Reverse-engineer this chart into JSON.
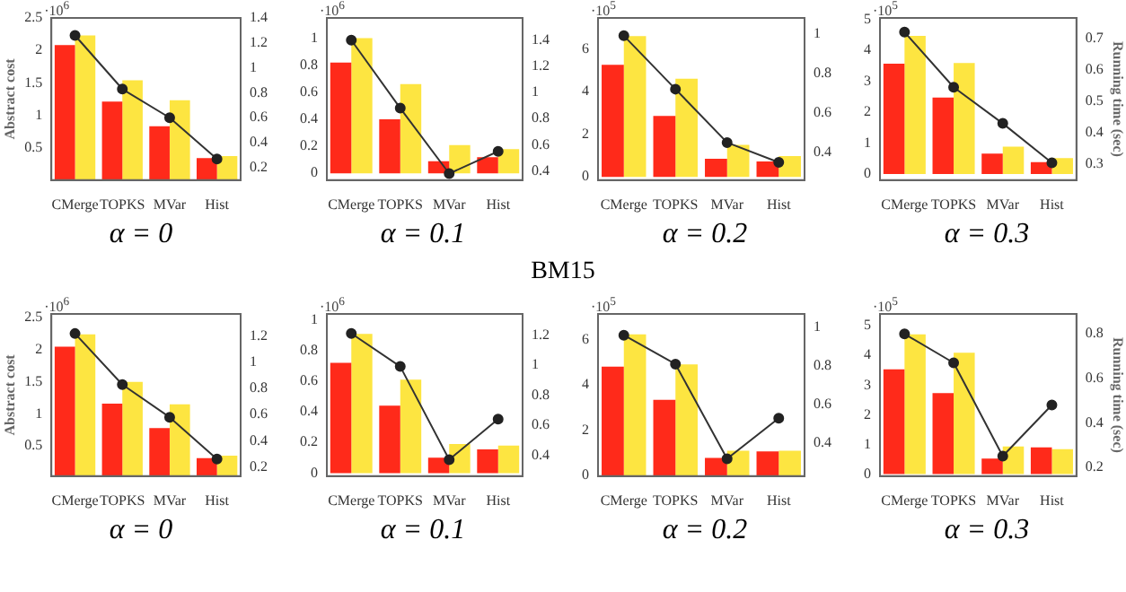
{
  "chart_data": [
    {
      "type": "bar",
      "title": "α = 0",
      "ylabel": "Abstract cost",
      "categories": [
        "CMerge",
        "TOPKS",
        "MVar",
        "Hist"
      ],
      "ylim": [
        0,
        2.5
      ],
      "yticks": [
        0.5,
        1,
        1.5,
        2,
        2.5
      ],
      "y2lim": [
        0.1,
        1.4
      ],
      "y2ticks": [
        0.2,
        0.4,
        0.6,
        0.8,
        1,
        1.2,
        1.4
      ],
      "grid": false,
      "legend": false,
      "marker": "circle",
      "annotations": [
        "·10$^{6}$"
      ],
      "series": [
        {
          "color": "#ff2a1a",
          "values": [
            2.08,
            1.21,
            0.83,
            0.34
          ]
        },
        {
          "color": "#fde541",
          "values": [
            2.23,
            1.54,
            1.23,
            0.37
          ]
        },
        {
          "type": "line",
          "axis": "y2",
          "color": "#333333",
          "values": [
            1.26,
            0.83,
            0.6,
            0.27
          ]
        }
      ]
    },
    {
      "type": "bar",
      "title": "α = 0.1",
      "categories": [
        "CMerge",
        "TOPKS",
        "MVar",
        "Hist"
      ],
      "ylim": [
        -0.05,
        1.15
      ],
      "yticks": [
        0,
        0.2,
        0.4,
        0.6,
        0.8,
        1
      ],
      "y2lim": [
        0.33,
        1.57
      ],
      "y2ticks": [
        0.4,
        0.6,
        0.8,
        1,
        1.2,
        1.4
      ],
      "grid": false,
      "legend": false,
      "marker": "circle",
      "annotations": [
        "·10$^{6}$",
        "BM15"
      ],
      "series": [
        {
          "color": "#ff2a1a",
          "values": [
            0.82,
            0.4,
            0.09,
            0.12
          ]
        },
        {
          "color": "#fde541",
          "values": [
            1.0,
            0.66,
            0.21,
            0.18
          ]
        },
        {
          "type": "line",
          "axis": "y2",
          "color": "#333333",
          "values": [
            1.4,
            0.88,
            0.38,
            0.55
          ]
        }
      ]
    },
    {
      "type": "bar",
      "title": "α = 0.2",
      "categories": [
        "CMerge",
        "TOPKS",
        "MVar",
        "Hist"
      ],
      "ylim": [
        -0.15,
        7.45
      ],
      "yticks": [
        0,
        2,
        4,
        6
      ],
      "y2lim": [
        0.26,
        1.08
      ],
      "y2ticks": [
        0.4,
        0.6,
        0.8,
        1
      ],
      "grid": false,
      "legend": false,
      "marker": "circle",
      "annotations": [
        "·10$^{5}$"
      ],
      "series": [
        {
          "color": "#ff2a1a",
          "values": [
            5.25,
            2.86,
            0.85,
            0.72
          ]
        },
        {
          "color": "#fde541",
          "values": [
            6.6,
            4.6,
            1.5,
            0.98
          ]
        },
        {
          "type": "line",
          "axis": "y2",
          "color": "#333333",
          "values": [
            0.99,
            0.72,
            0.45,
            0.35
          ]
        }
      ]
    },
    {
      "type": "bar",
      "title": "α = 0.3",
      "y2label": "Running time (sec)",
      "categories": [
        "CMerge",
        "TOPKS",
        "MVar",
        "Hist"
      ],
      "ylim": [
        -0.2,
        5.05
      ],
      "yticks": [
        0,
        1,
        2,
        3,
        4,
        5
      ],
      "y2lim": [
        0.25,
        0.765
      ],
      "y2ticks": [
        0.3,
        0.4,
        0.5,
        0.6,
        0.7
      ],
      "grid": false,
      "legend": false,
      "marker": "circle",
      "annotations": [
        "·10$^{5}$"
      ],
      "series": [
        {
          "color": "#ff2a1a",
          "values": [
            3.57,
            2.47,
            0.66,
            0.38
          ]
        },
        {
          "color": "#fde541",
          "values": [
            4.47,
            3.59,
            0.88,
            0.51
          ]
        },
        {
          "type": "line",
          "axis": "y2",
          "color": "#333333",
          "values": [
            0.72,
            0.545,
            0.43,
            0.305
          ]
        }
      ]
    },
    {
      "type": "bar",
      "title": "α = 0",
      "ylabel": "Abstract cost",
      "categories": [
        "CMerge",
        "TOPKS",
        "MVar",
        "Hist"
      ],
      "ylim": [
        0.03,
        2.56
      ],
      "yticks": [
        0.5,
        1,
        1.5,
        2,
        2.5
      ],
      "y2lim": [
        0.13,
        1.37
      ],
      "y2ticks": [
        0.2,
        0.4,
        0.6,
        0.8,
        1,
        1.2
      ],
      "grid": false,
      "legend": false,
      "marker": "circle",
      "annotations": [
        "·10$^{6}$"
      ],
      "series": [
        {
          "color": "#ff2a1a",
          "values": [
            2.05,
            1.16,
            0.78,
            0.31
          ]
        },
        {
          "color": "#fde541",
          "values": [
            2.24,
            1.5,
            1.15,
            0.35
          ]
        },
        {
          "type": "line",
          "axis": "y2",
          "color": "#333333",
          "values": [
            1.22,
            0.83,
            0.58,
            0.26
          ]
        }
      ]
    },
    {
      "type": "bar",
      "title": "α = 0.1",
      "categories": [
        "CMerge",
        "TOPKS",
        "MVar",
        "Hist"
      ],
      "ylim": [
        -0.02,
        1.04
      ],
      "yticks": [
        0,
        0.2,
        0.4,
        0.6,
        0.8,
        1
      ],
      "y2lim": [
        0.26,
        1.34
      ],
      "y2ticks": [
        0.4,
        0.6,
        0.8,
        1,
        1.2
      ],
      "grid": false,
      "legend": false,
      "marker": "circle",
      "annotations": [
        "·10$^{6}$"
      ],
      "series": [
        {
          "color": "#ff2a1a",
          "values": [
            0.72,
            0.44,
            0.1,
            0.155
          ]
        },
        {
          "color": "#fde541",
          "values": [
            0.91,
            0.61,
            0.19,
            0.18
          ]
        },
        {
          "type": "line",
          "axis": "y2",
          "color": "#333333",
          "values": [
            1.21,
            0.99,
            0.37,
            0.64
          ]
        }
      ]
    },
    {
      "type": "bar",
      "title": "α = 0.2",
      "categories": [
        "CMerge",
        "TOPKS",
        "MVar",
        "Hist"
      ],
      "ylim": [
        -0.02,
        7.12
      ],
      "yticks": [
        0,
        2,
        4,
        6
      ],
      "y2lim": [
        0.23,
        1.07
      ],
      "y2ticks": [
        0.4,
        0.6,
        0.8,
        1
      ],
      "grid": false,
      "legend": false,
      "marker": "circle",
      "annotations": [
        "·10$^{5}$"
      ],
      "series": [
        {
          "color": "#ff2a1a",
          "values": [
            4.8,
            3.34,
            0.78,
            1.07
          ]
        },
        {
          "color": "#fde541",
          "values": [
            6.22,
            4.9,
            1.1,
            1.1
          ]
        },
        {
          "type": "line",
          "axis": "y2",
          "color": "#333333",
          "values": [
            0.96,
            0.81,
            0.32,
            0.53
          ]
        }
      ]
    },
    {
      "type": "bar",
      "title": "α = 0.3",
      "y2label": "Running time (sec)",
      "categories": [
        "CMerge",
        "TOPKS",
        "MVar",
        "Hist"
      ],
      "ylim": [
        -0.07,
        5.4
      ],
      "yticks": [
        0,
        1,
        2,
        3,
        4,
        5
      ],
      "y2lim": [
        0.16,
        0.89
      ],
      "y2ticks": [
        0.2,
        0.4,
        0.6,
        0.8
      ],
      "grid": false,
      "legend": false,
      "marker": "circle",
      "annotations": [
        "·10$^{5}$"
      ],
      "series": [
        {
          "color": "#ff2a1a",
          "values": [
            3.53,
            2.73,
            0.52,
            0.9
          ]
        },
        {
          "color": "#fde541",
          "values": [
            4.71,
            4.09,
            0.93,
            0.84
          ]
        },
        {
          "type": "line",
          "axis": "y2",
          "color": "#333333",
          "values": [
            0.8,
            0.67,
            0.25,
            0.48
          ]
        }
      ]
    }
  ]
}
